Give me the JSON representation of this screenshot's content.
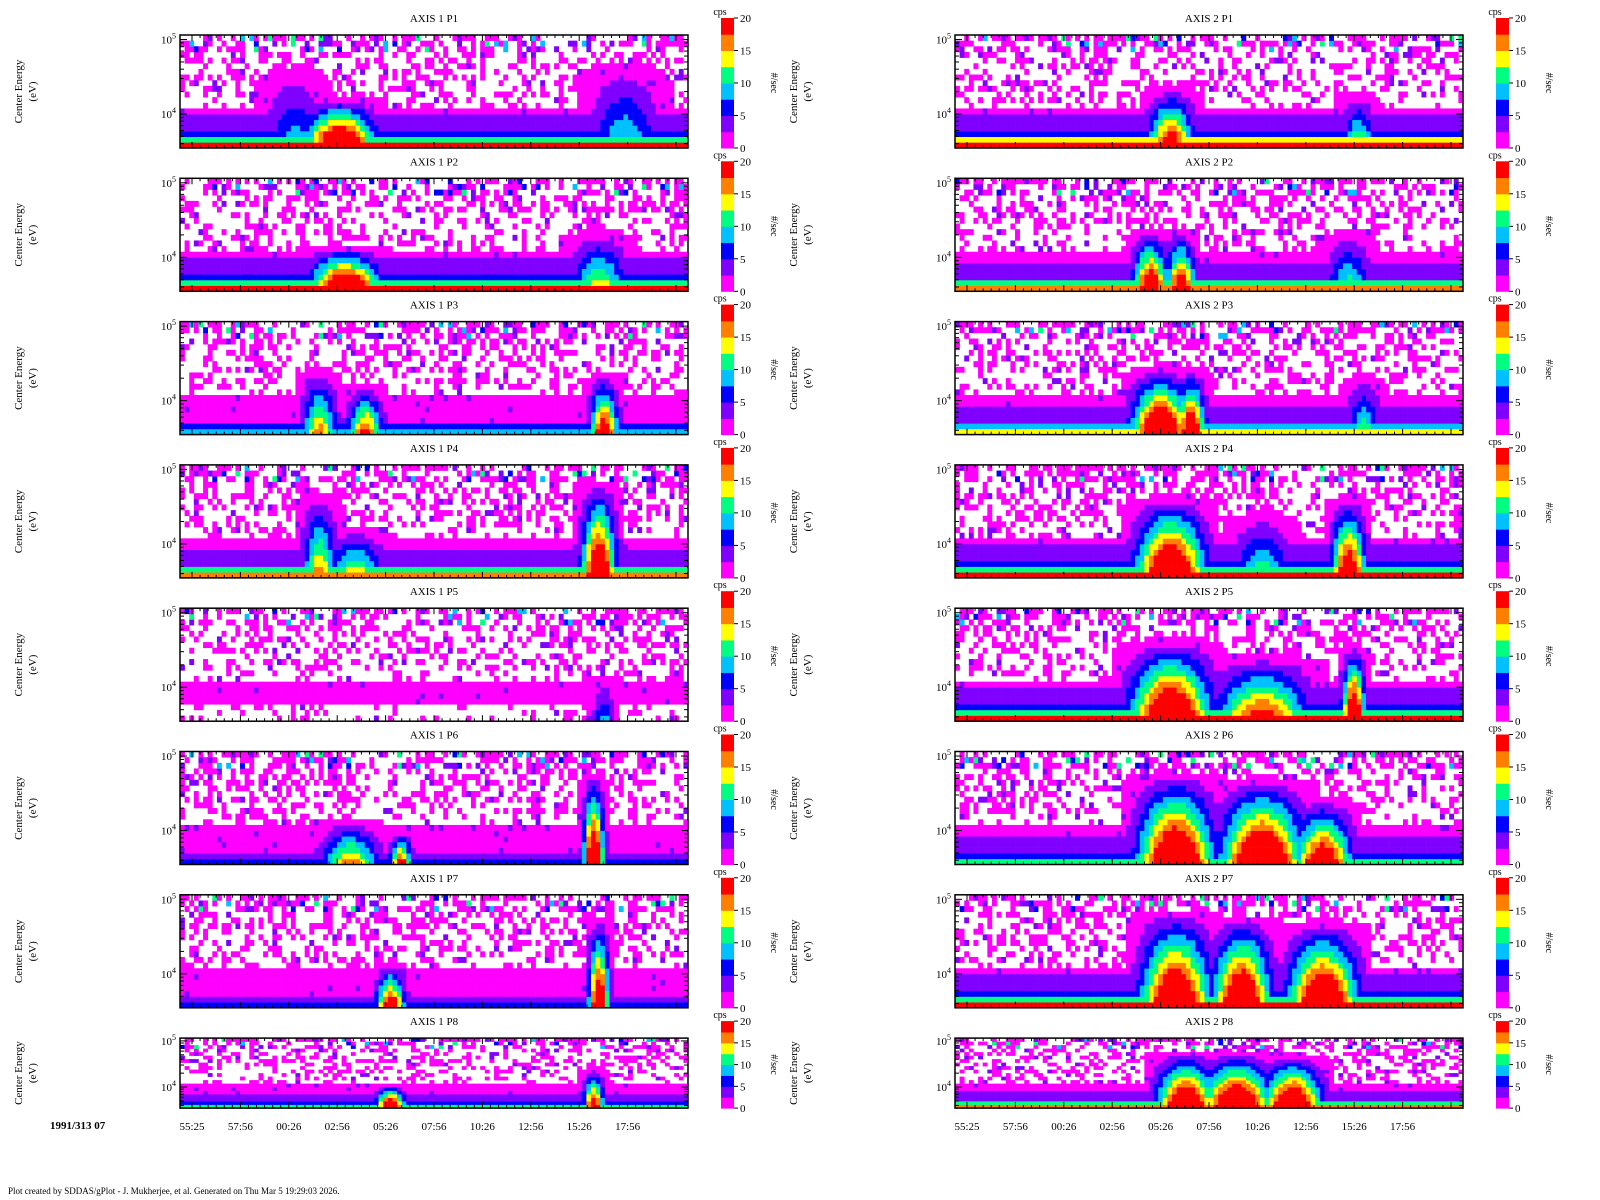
{
  "chart_data": {
    "type": "heatmap",
    "y_axis": {
      "label": "Center Energy (eV)",
      "label_line1": "Center Energy",
      "label_line2": "(eV)",
      "scale": "log",
      "ylim": [
        3500,
        115000
      ],
      "tick_values": [
        10000,
        100000
      ],
      "tick_labels": [
        "10^4",
        "10^5"
      ]
    },
    "x_axis": {
      "tick_labels": [
        "55:25",
        "57:56",
        "00:26",
        "02:56",
        "05:26",
        "07:56",
        "10:26",
        "12:56",
        "15:26",
        "17:56"
      ]
    },
    "colorbar": {
      "unit_top": "cps",
      "label": "#/sec",
      "range": [
        0,
        20
      ],
      "tick_labels": [
        "0",
        "5",
        "10",
        "15",
        "20"
      ],
      "colormap": [
        "#ff00ff",
        "#8000ff",
        "#0000ff",
        "#00c0ff",
        "#00ff80",
        "#ffff00",
        "#ff8000",
        "#ff0000"
      ]
    },
    "panels": [
      {
        "title": "AXIS 1 P1",
        "base": 0.85,
        "noise": 0.22,
        "blobs": [
          [
            0.31,
            0.06,
            1.0,
            0.45
          ],
          [
            0.22,
            0.05,
            0.35,
            0.75
          ],
          [
            0.87,
            0.06,
            0.4,
            0.8
          ]
        ]
      },
      {
        "title": "AXIS 1 P2",
        "base": 0.8,
        "noise": 0.2,
        "blobs": [
          [
            0.32,
            0.06,
            1.0,
            0.4
          ],
          [
            0.82,
            0.05,
            0.55,
            0.55
          ]
        ]
      },
      {
        "title": "AXIS 1 P3",
        "base": 0.35,
        "noise": 0.22,
        "blobs": [
          [
            0.27,
            0.03,
            0.6,
            0.6
          ],
          [
            0.36,
            0.03,
            0.7,
            0.45
          ],
          [
            0.83,
            0.025,
            0.8,
            0.55
          ]
        ]
      },
      {
        "title": "AXIS 1 P4",
        "base": 0.75,
        "noise": 0.22,
        "blobs": [
          [
            0.27,
            0.03,
            0.6,
            0.8
          ],
          [
            0.34,
            0.05,
            0.55,
            0.45
          ],
          [
            0.82,
            0.03,
            0.95,
            0.9
          ]
        ]
      },
      {
        "title": "AXIS 1 P5",
        "base": 0.0,
        "noise": 0.18,
        "blobs": [
          [
            0.83,
            0.02,
            0.3,
            0.4
          ]
        ]
      },
      {
        "title": "AXIS 1 P6",
        "base": 0.3,
        "noise": 0.22,
        "blobs": [
          [
            0.33,
            0.05,
            0.6,
            0.4
          ],
          [
            0.43,
            0.02,
            0.7,
            0.3
          ],
          [
            0.81,
            0.018,
            0.95,
            0.85
          ]
        ]
      },
      {
        "title": "AXIS 1 P7",
        "base": 0.3,
        "noise": 0.22,
        "blobs": [
          [
            0.41,
            0.025,
            0.8,
            0.4
          ],
          [
            0.82,
            0.018,
            0.9,
            0.85
          ]
        ]
      },
      {
        "title": "AXIS 1 P8",
        "base": 0.45,
        "noise": 0.2,
        "blobs": [
          [
            0.41,
            0.025,
            0.9,
            0.35
          ],
          [
            0.81,
            0.018,
            0.8,
            0.6
          ]
        ]
      },
      {
        "title": "AXIS 2 P1",
        "base": 0.9,
        "noise": 0.2,
        "blobs": [
          [
            0.42,
            0.04,
            0.8,
            0.55
          ],
          [
            0.79,
            0.03,
            0.5,
            0.5
          ]
        ]
      },
      {
        "title": "AXIS 2 P2",
        "base": 0.75,
        "noise": 0.2,
        "blobs": [
          [
            0.38,
            0.03,
            0.9,
            0.55
          ],
          [
            0.44,
            0.025,
            0.85,
            0.55
          ],
          [
            0.77,
            0.04,
            0.45,
            0.55
          ]
        ]
      },
      {
        "title": "AXIS 2 P3",
        "base": 0.65,
        "noise": 0.22,
        "blobs": [
          [
            0.4,
            0.05,
            1.0,
            0.6
          ],
          [
            0.46,
            0.025,
            0.9,
            0.6
          ],
          [
            0.8,
            0.03,
            0.45,
            0.55
          ]
        ]
      },
      {
        "title": "AXIS 2 P4",
        "base": 0.8,
        "noise": 0.22,
        "blobs": [
          [
            0.42,
            0.06,
            1.0,
            0.75
          ],
          [
            0.6,
            0.05,
            0.45,
            0.6
          ],
          [
            0.77,
            0.03,
            0.9,
            0.75
          ]
        ]
      },
      {
        "title": "AXIS 2 P5",
        "base": 0.85,
        "noise": 0.22,
        "blobs": [
          [
            0.42,
            0.07,
            1.0,
            0.75
          ],
          [
            0.6,
            0.08,
            0.75,
            0.6
          ],
          [
            0.78,
            0.02,
            1.0,
            0.7
          ]
        ]
      },
      {
        "title": "AXIS 2 P6",
        "base": 0.5,
        "noise": 0.22,
        "blobs": [
          [
            0.43,
            0.065,
            1.0,
            0.85
          ],
          [
            0.6,
            0.07,
            1.0,
            0.8
          ],
          [
            0.72,
            0.05,
            0.85,
            0.6
          ]
        ]
      },
      {
        "title": "AXIS 2 P7",
        "base": 0.85,
        "noise": 0.22,
        "blobs": [
          [
            0.43,
            0.06,
            1.0,
            0.9
          ],
          [
            0.56,
            0.05,
            1.0,
            0.85
          ],
          [
            0.72,
            0.06,
            1.0,
            0.8
          ]
        ]
      },
      {
        "title": "AXIS 2 P8",
        "base": 0.75,
        "noise": 0.2,
        "blobs": [
          [
            0.45,
            0.05,
            1.0,
            0.85
          ],
          [
            0.55,
            0.06,
            1.0,
            0.85
          ],
          [
            0.66,
            0.05,
            1.0,
            0.8
          ]
        ]
      }
    ]
  },
  "date_label": "1991/313 07",
  "footer": "Plot created by SDDAS/gPlot - J. Mukherjee, et al.  Generated on Thu Mar 5 19:29:03 2026."
}
